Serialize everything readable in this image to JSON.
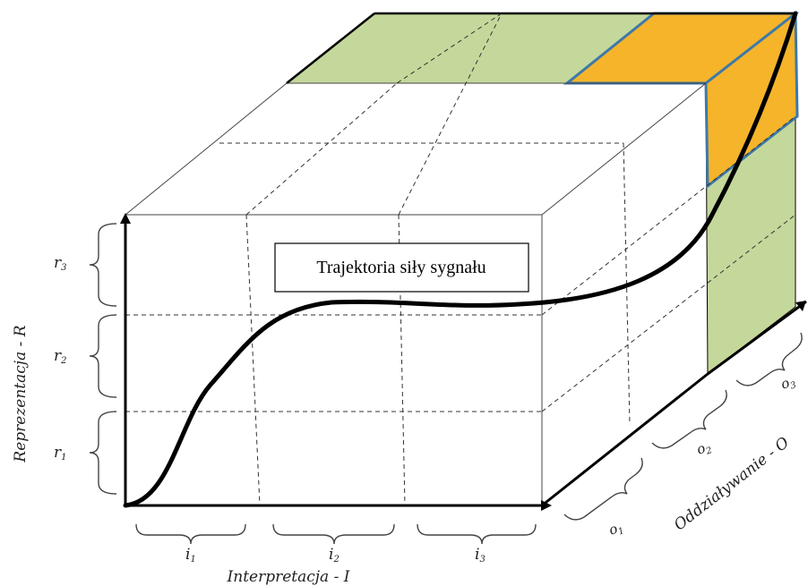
{
  "signal_label": "Trajektoria siły sygnału",
  "axes": {
    "x_label": "Interpretacja - I",
    "y_label": "Reprezentacja - R",
    "z_label": "Oddziaływanie - O"
  },
  "x_segments": [
    {
      "base": "i",
      "sub": "1"
    },
    {
      "base": "i",
      "sub": "2"
    },
    {
      "base": "i",
      "sub": "3"
    }
  ],
  "y_segments": [
    {
      "base": "r",
      "sub": "1"
    },
    {
      "base": "r",
      "sub": "2"
    },
    {
      "base": "r",
      "sub": "3"
    }
  ],
  "z_segments": [
    {
      "base": "o",
      "sub": "1"
    },
    {
      "base": "o",
      "sub": "2"
    },
    {
      "base": "o",
      "sub": "3"
    }
  ],
  "colors": {
    "face_green": "#c4d89b",
    "highlight_orange": "#f5b42a",
    "highlight_border": "#3d79a8",
    "line": "#000000"
  }
}
